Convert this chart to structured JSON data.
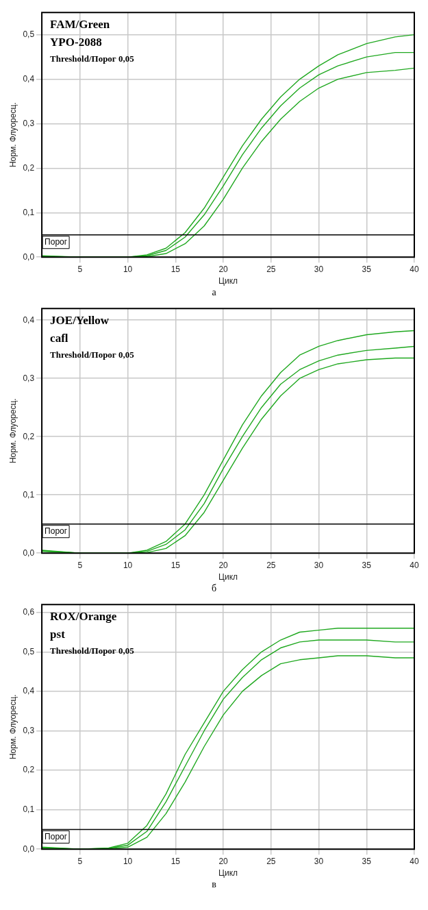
{
  "chart_data": [
    {
      "type": "line",
      "title": "FAM/Green",
      "subtitle": "YPO-2088",
      "xlabel": "Цикл",
      "ylabel": "Норм. Флуоресц.",
      "annotations": [
        "Threshold/Порог 0,05",
        "а"
      ],
      "x": [
        1,
        5,
        10,
        12,
        14,
        16,
        18,
        20,
        22,
        24,
        26,
        28,
        30,
        32,
        35,
        38,
        40
      ],
      "series": [
        {
          "color": "#1fa81f",
          "values": [
            0.003,
            0,
            0,
            0.005,
            0.02,
            0.055,
            0.11,
            0.18,
            0.25,
            0.31,
            0.36,
            0.4,
            0.43,
            0.455,
            0.48,
            0.495,
            0.5
          ]
        },
        {
          "color": "#1fa81f",
          "values": [
            0.002,
            0,
            0,
            0.003,
            0.015,
            0.045,
            0.095,
            0.16,
            0.23,
            0.29,
            0.34,
            0.38,
            0.41,
            0.43,
            0.45,
            0.46,
            0.46
          ]
        },
        {
          "color": "#1fa81f",
          "values": [
            0.001,
            0,
            0,
            0.001,
            0.008,
            0.03,
            0.07,
            0.13,
            0.2,
            0.26,
            0.31,
            0.35,
            0.38,
            0.4,
            0.415,
            0.42,
            0.425
          ]
        }
      ],
      "xlim": [
        1,
        40
      ],
      "xticks": [
        5,
        10,
        15,
        20,
        25,
        30,
        35,
        40
      ],
      "ylim": [
        0,
        0.55
      ],
      "yticks": [
        {
          "value": 0,
          "label": "0,0"
        },
        {
          "value": 0.1,
          "label": "0,1"
        },
        {
          "value": 0.2,
          "label": "0,2"
        },
        {
          "value": 0.3,
          "label": "0,3"
        },
        {
          "value": 0.4,
          "label": "0,4"
        },
        {
          "value": 0.5,
          "label": "0,5"
        }
      ],
      "ref_lines": [
        {
          "axis": "y",
          "value": 0.05,
          "label": "Порог",
          "color": "#000000"
        }
      ],
      "grid": true,
      "legend": false,
      "marker": "none",
      "line_style": "solid"
    },
    {
      "type": "line",
      "title": "JOE/Yellow",
      "subtitle": "cafl",
      "xlabel": "Цикл",
      "ylabel": "Норм. Флуоресц.",
      "annotations": [
        "Threshold/Порог 0,05",
        "б"
      ],
      "x": [
        1,
        5,
        10,
        12,
        14,
        16,
        18,
        20,
        22,
        24,
        26,
        28,
        30,
        32,
        35,
        38,
        40
      ],
      "series": [
        {
          "color": "#1fa81f",
          "values": [
            0.005,
            0,
            0,
            0.005,
            0.02,
            0.05,
            0.1,
            0.16,
            0.22,
            0.27,
            0.31,
            0.34,
            0.355,
            0.365,
            0.375,
            0.38,
            0.382
          ]
        },
        {
          "color": "#1fa81f",
          "values": [
            0.004,
            0,
            0,
            0.003,
            0.015,
            0.04,
            0.085,
            0.145,
            0.2,
            0.25,
            0.29,
            0.315,
            0.33,
            0.34,
            0.348,
            0.352,
            0.355
          ]
        },
        {
          "color": "#1fa81f",
          "values": [
            0.003,
            0,
            0,
            0.001,
            0.008,
            0.03,
            0.07,
            0.125,
            0.18,
            0.23,
            0.27,
            0.3,
            0.315,
            0.325,
            0.332,
            0.335,
            0.335
          ]
        }
      ],
      "xlim": [
        1,
        40
      ],
      "xticks": [
        5,
        10,
        15,
        20,
        25,
        30,
        35,
        40
      ],
      "ylim": [
        0,
        0.42
      ],
      "yticks": [
        {
          "value": 0,
          "label": "0,0"
        },
        {
          "value": 0.1,
          "label": "0,1"
        },
        {
          "value": 0.2,
          "label": "0,2"
        },
        {
          "value": 0.3,
          "label": "0,3"
        },
        {
          "value": 0.4,
          "label": "0,4"
        }
      ],
      "ref_lines": [
        {
          "axis": "y",
          "value": 0.05,
          "label": "Порог",
          "color": "#000000"
        }
      ],
      "grid": true,
      "legend": false,
      "marker": "none",
      "line_style": "solid"
    },
    {
      "type": "line",
      "title": "ROX/Orange",
      "subtitle": "pst",
      "xlabel": "Цикл",
      "ylabel": "Норм. Флуоресц.",
      "annotations": [
        "Threshold/Порог 0,05",
        "в"
      ],
      "x": [
        1,
        5,
        8,
        10,
        12,
        14,
        16,
        18,
        20,
        22,
        24,
        26,
        28,
        30,
        32,
        35,
        38,
        40
      ],
      "series": [
        {
          "color": "#1fa81f",
          "values": [
            0.005,
            0,
            0.003,
            0.015,
            0.06,
            0.14,
            0.24,
            0.32,
            0.4,
            0.455,
            0.5,
            0.53,
            0.55,
            0.555,
            0.56,
            0.56,
            0.56,
            0.56
          ]
        },
        {
          "color": "#1fa81f",
          "values": [
            0.004,
            0,
            0.002,
            0.01,
            0.045,
            0.12,
            0.21,
            0.3,
            0.38,
            0.435,
            0.48,
            0.51,
            0.525,
            0.53,
            0.53,
            0.53,
            0.525,
            0.525
          ]
        },
        {
          "color": "#1fa81f",
          "values": [
            0.003,
            0,
            0.001,
            0.005,
            0.03,
            0.09,
            0.17,
            0.26,
            0.34,
            0.4,
            0.44,
            0.47,
            0.48,
            0.485,
            0.49,
            0.49,
            0.485,
            0.485
          ]
        }
      ],
      "xlim": [
        1,
        40
      ],
      "xticks": [
        5,
        10,
        15,
        20,
        25,
        30,
        35,
        40
      ],
      "ylim": [
        0,
        0.62
      ],
      "yticks": [
        {
          "value": 0,
          "label": "0,0"
        },
        {
          "value": 0.1,
          "label": "0,1"
        },
        {
          "value": 0.2,
          "label": "0,2"
        },
        {
          "value": 0.3,
          "label": "0,3"
        },
        {
          "value": 0.4,
          "label": "0,4"
        },
        {
          "value": 0.5,
          "label": "0,5"
        },
        {
          "value": 0.6,
          "label": "0,6"
        }
      ],
      "ref_lines": [
        {
          "axis": "y",
          "value": 0.05,
          "label": "Порог",
          "color": "#000000"
        }
      ],
      "grid": true,
      "legend": false,
      "marker": "none",
      "line_style": "solid"
    }
  ]
}
